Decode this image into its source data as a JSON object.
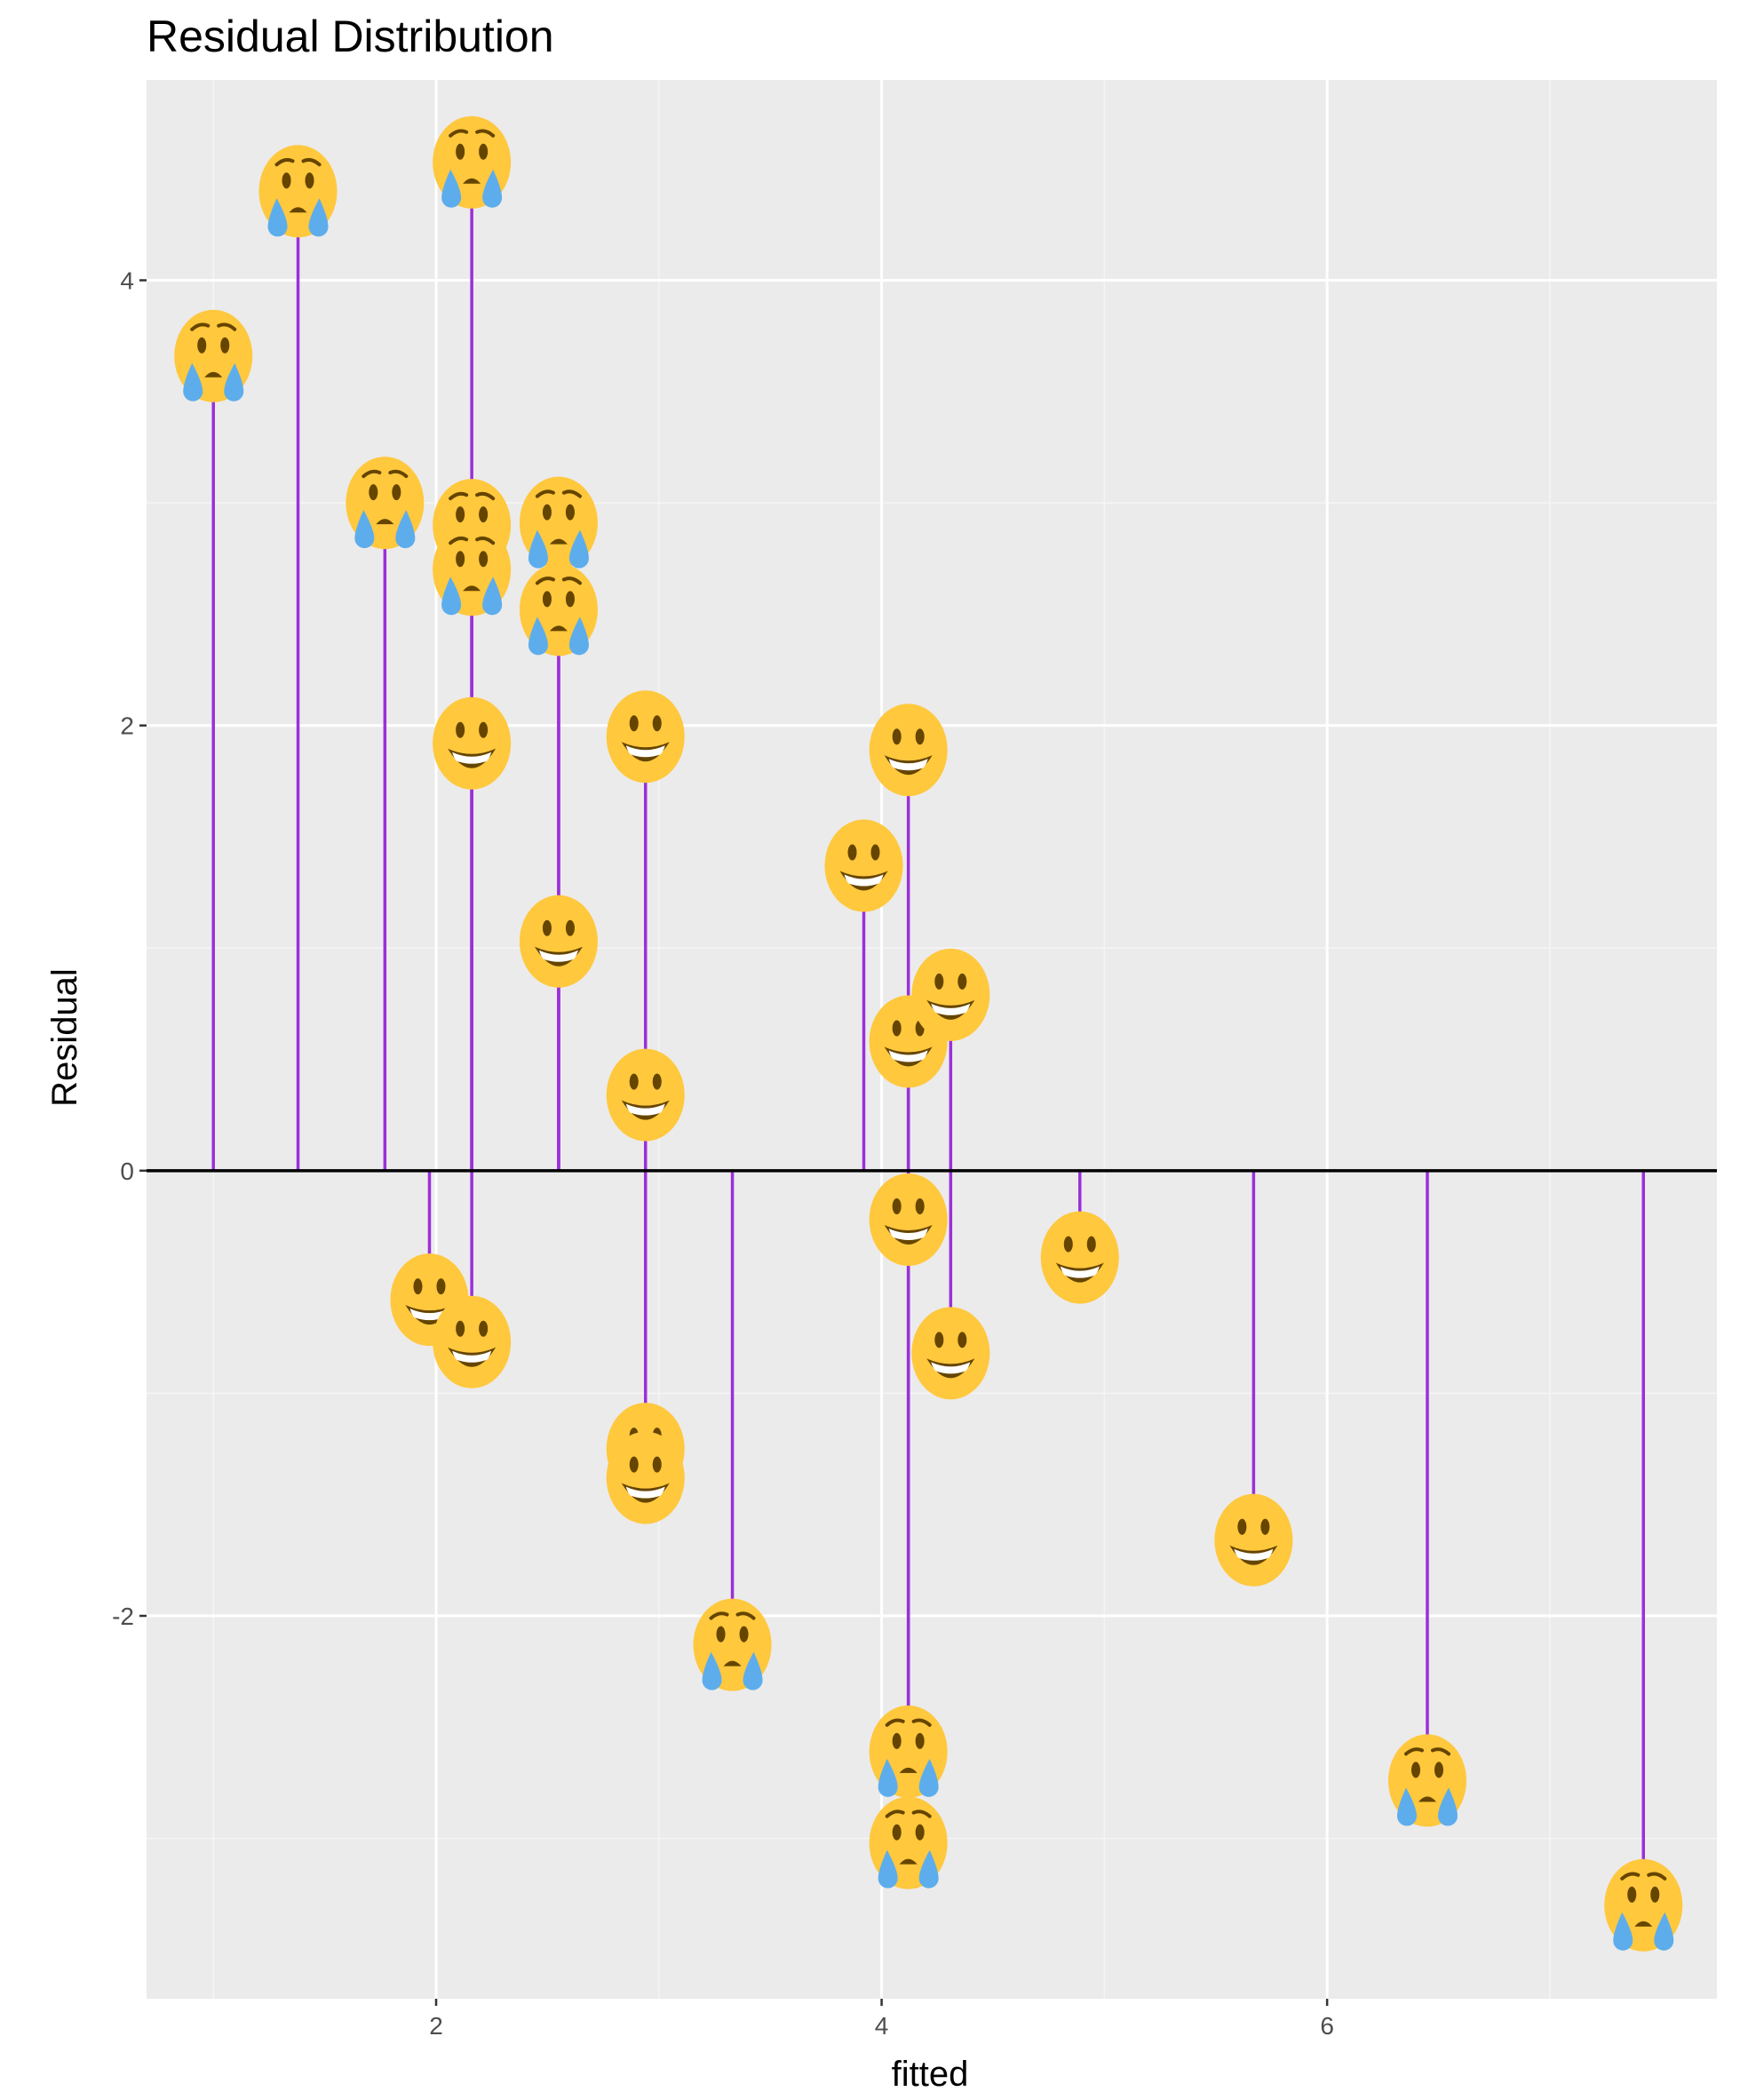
{
  "chart_data": {
    "type": "scatter",
    "title": "Residual Distribution",
    "xlabel": "fitted",
    "ylabel": "Residual",
    "xlim": [
      0.7,
      7.75
    ],
    "ylim": [
      -3.72,
      4.9
    ],
    "x_ticks": [
      2,
      4,
      6
    ],
    "x_tick_labels": [
      "2",
      "4",
      "6"
    ],
    "y_ticks": [
      -2,
      0,
      2,
      4
    ],
    "y_tick_labels": [
      "-2",
      "0",
      "2",
      "4"
    ],
    "grid": true,
    "reference_line_y": 0,
    "marker_legend": {
      "positive_residual_marker": "crying-face-icon",
      "negative_residual_marker": "grinning-face-icon"
    },
    "series": [
      {
        "values": [
          {
            "x": 1.0,
            "y": 3.66,
            "marker": "crying-face-icon"
          },
          {
            "x": 1.38,
            "y": 4.4,
            "marker": "crying-face-icon"
          },
          {
            "x": 1.77,
            "y": 3.0,
            "marker": "crying-face-icon"
          },
          {
            "x": 1.97,
            "y": -0.58,
            "marker": "grinning-face-icon"
          },
          {
            "x": 2.16,
            "y": 4.53,
            "marker": "crying-face-icon"
          },
          {
            "x": 2.16,
            "y": 2.9,
            "marker": "crying-face-icon"
          },
          {
            "x": 2.16,
            "y": 2.7,
            "marker": "crying-face-icon"
          },
          {
            "x": 2.16,
            "y": 1.92,
            "marker": "grinning-face-icon"
          },
          {
            "x": 2.16,
            "y": -0.77,
            "marker": "grinning-face-icon"
          },
          {
            "x": 2.55,
            "y": 2.91,
            "marker": "crying-face-icon"
          },
          {
            "x": 2.55,
            "y": 2.52,
            "marker": "crying-face-icon"
          },
          {
            "x": 2.55,
            "y": 1.03,
            "marker": "grinning-face-icon"
          },
          {
            "x": 2.94,
            "y": 1.95,
            "marker": "grinning-face-icon"
          },
          {
            "x": 2.94,
            "y": 0.34,
            "marker": "grinning-face-icon"
          },
          {
            "x": 2.94,
            "y": -1.25,
            "marker": "grinning-face-icon"
          },
          {
            "x": 2.94,
            "y": -1.38,
            "marker": "grinning-face-icon"
          },
          {
            "x": 3.33,
            "y": -2.13,
            "marker": "crying-face-icon"
          },
          {
            "x": 3.92,
            "y": 1.37,
            "marker": "grinning-face-icon"
          },
          {
            "x": 4.12,
            "y": 1.89,
            "marker": "grinning-face-icon"
          },
          {
            "x": 4.12,
            "y": 0.58,
            "marker": "grinning-face-icon"
          },
          {
            "x": 4.12,
            "y": -0.22,
            "marker": "grinning-face-icon"
          },
          {
            "x": 4.12,
            "y": -2.61,
            "marker": "crying-face-icon"
          },
          {
            "x": 4.12,
            "y": -3.02,
            "marker": "crying-face-icon"
          },
          {
            "x": 4.31,
            "y": 0.79,
            "marker": "grinning-face-icon"
          },
          {
            "x": 4.31,
            "y": -0.82,
            "marker": "grinning-face-icon"
          },
          {
            "x": 4.89,
            "y": -0.39,
            "marker": "grinning-face-icon"
          },
          {
            "x": 5.67,
            "y": -1.66,
            "marker": "grinning-face-icon"
          },
          {
            "x": 6.45,
            "y": -2.74,
            "marker": "crying-face-icon"
          },
          {
            "x": 7.42,
            "y": -3.3,
            "marker": "crying-face-icon"
          }
        ]
      }
    ]
  },
  "colors": {
    "panel_background": "#ebebeb",
    "grid_major": "#ffffff",
    "grid_minor": "#f5f5f5",
    "segment": "#9b30d9",
    "zero_line": "#000000",
    "emoji_face": "#ffc83d",
    "emoji_features": "#664500",
    "emoji_tears": "#5dadec"
  }
}
